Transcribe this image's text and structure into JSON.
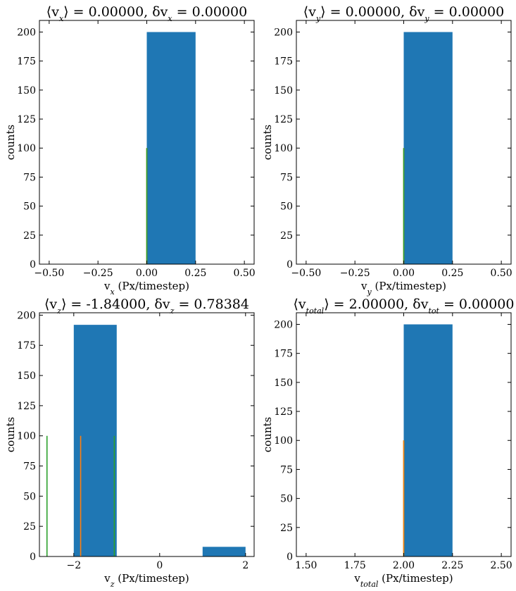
{
  "colors": {
    "bar": "#1f77b4",
    "mean_line": "#ff7f0e",
    "std_line": "#2ca02c",
    "axis": "#000000"
  },
  "chart_data": [
    {
      "type": "bar",
      "title_parts": [
        "⟨v",
        "x",
        "⟩ = 0.00000, δv",
        "x",
        " = 0.00000"
      ],
      "xlabel_parts": [
        "v",
        "x",
        " (Px/timestep)"
      ],
      "ylabel": "counts",
      "xlim": [
        -0.55,
        0.55
      ],
      "ylim": [
        0,
        210
      ],
      "xticks": [
        -0.5,
        -0.25,
        0,
        0.25,
        0.5
      ],
      "xtick_labels": [
        "−0.50",
        "−0.25",
        "0.00",
        "0.25",
        "0.50"
      ],
      "yticks": [
        0,
        25,
        50,
        75,
        100,
        125,
        150,
        175,
        200
      ],
      "ytick_labels": [
        "0",
        "25",
        "50",
        "75",
        "100",
        "125",
        "150",
        "175",
        "200"
      ],
      "bins": [
        {
          "x0": 0.0,
          "x1": 0.25,
          "count": 200
        }
      ],
      "vlines": [
        {
          "x": 0.0,
          "height": 100,
          "color": "#ff7f0e"
        },
        {
          "x": 0.0,
          "height": 100,
          "color": "#2ca02c"
        }
      ]
    },
    {
      "type": "bar",
      "title_parts": [
        "⟨v",
        "y",
        "⟩ = 0.00000, δv",
        "y",
        " = 0.00000"
      ],
      "xlabel_parts": [
        "v",
        "y",
        " (Px/timestep)"
      ],
      "ylabel": "counts",
      "xlim": [
        -0.55,
        0.55
      ],
      "ylim": [
        0,
        210
      ],
      "xticks": [
        -0.5,
        -0.25,
        0,
        0.25,
        0.5
      ],
      "xtick_labels": [
        "−0.50",
        "−0.25",
        "0.00",
        "0.25",
        "0.50"
      ],
      "yticks": [
        0,
        25,
        50,
        75,
        100,
        125,
        150,
        175,
        200
      ],
      "ytick_labels": [
        "0",
        "25",
        "50",
        "75",
        "100",
        "125",
        "150",
        "175",
        "200"
      ],
      "bins": [
        {
          "x0": 0.0,
          "x1": 0.25,
          "count": 200
        }
      ],
      "vlines": [
        {
          "x": 0.0,
          "height": 100,
          "color": "#ff7f0e"
        },
        {
          "x": 0.0,
          "height": 100,
          "color": "#2ca02c"
        }
      ]
    },
    {
      "type": "bar",
      "title_parts": [
        "⟨v",
        "z",
        "⟩ = -1.84000, δv",
        "z",
        " = 0.78384"
      ],
      "xlabel_parts": [
        "v",
        "z",
        " (Px/timestep)"
      ],
      "ylabel": "counts",
      "xlim": [
        -2.8,
        2.2
      ],
      "ylim": [
        0,
        202
      ],
      "xticks": [
        -2,
        0,
        2
      ],
      "xtick_labels": [
        "−2",
        "0",
        "2"
      ],
      "yticks": [
        0,
        25,
        50,
        75,
        100,
        125,
        150,
        175,
        200
      ],
      "ytick_labels": [
        "0",
        "25",
        "50",
        "75",
        "100",
        "125",
        "150",
        "175",
        "200"
      ],
      "bins": [
        {
          "x0": -2.0,
          "x1": -1.0,
          "count": 192
        },
        {
          "x0": 1.0,
          "x1": 2.0,
          "count": 8
        }
      ],
      "vlines": [
        {
          "x": -1.84,
          "height": 100,
          "color": "#ff7f0e"
        },
        {
          "x": -2.62384,
          "height": 100,
          "color": "#2ca02c"
        },
        {
          "x": -1.05616,
          "height": 100,
          "color": "#2ca02c"
        }
      ]
    },
    {
      "type": "bar",
      "title_parts": [
        "⟨v",
        "total",
        "⟩ = 2.00000, δv",
        "tot",
        " = 0.00000"
      ],
      "xlabel_parts": [
        "v",
        "total",
        " (Px/timestep)"
      ],
      "ylabel": "counts",
      "xlim": [
        1.45,
        2.55
      ],
      "ylim": [
        0,
        210
      ],
      "xticks": [
        1.5,
        1.75,
        2.0,
        2.25,
        2.5
      ],
      "xtick_labels": [
        "1.50",
        "1.75",
        "2.00",
        "2.25",
        "2.50"
      ],
      "yticks": [
        0,
        25,
        50,
        75,
        100,
        125,
        150,
        175,
        200
      ],
      "ytick_labels": [
        "0",
        "25",
        "50",
        "75",
        "100",
        "125",
        "150",
        "175",
        "200"
      ],
      "bins": [
        {
          "x0": 2.0,
          "x1": 2.25,
          "count": 200
        }
      ],
      "vlines": [
        {
          "x": 2.0,
          "height": 100,
          "color": "#2ca02c"
        },
        {
          "x": 2.0,
          "height": 100,
          "color": "#ff7f0e"
        }
      ]
    }
  ]
}
